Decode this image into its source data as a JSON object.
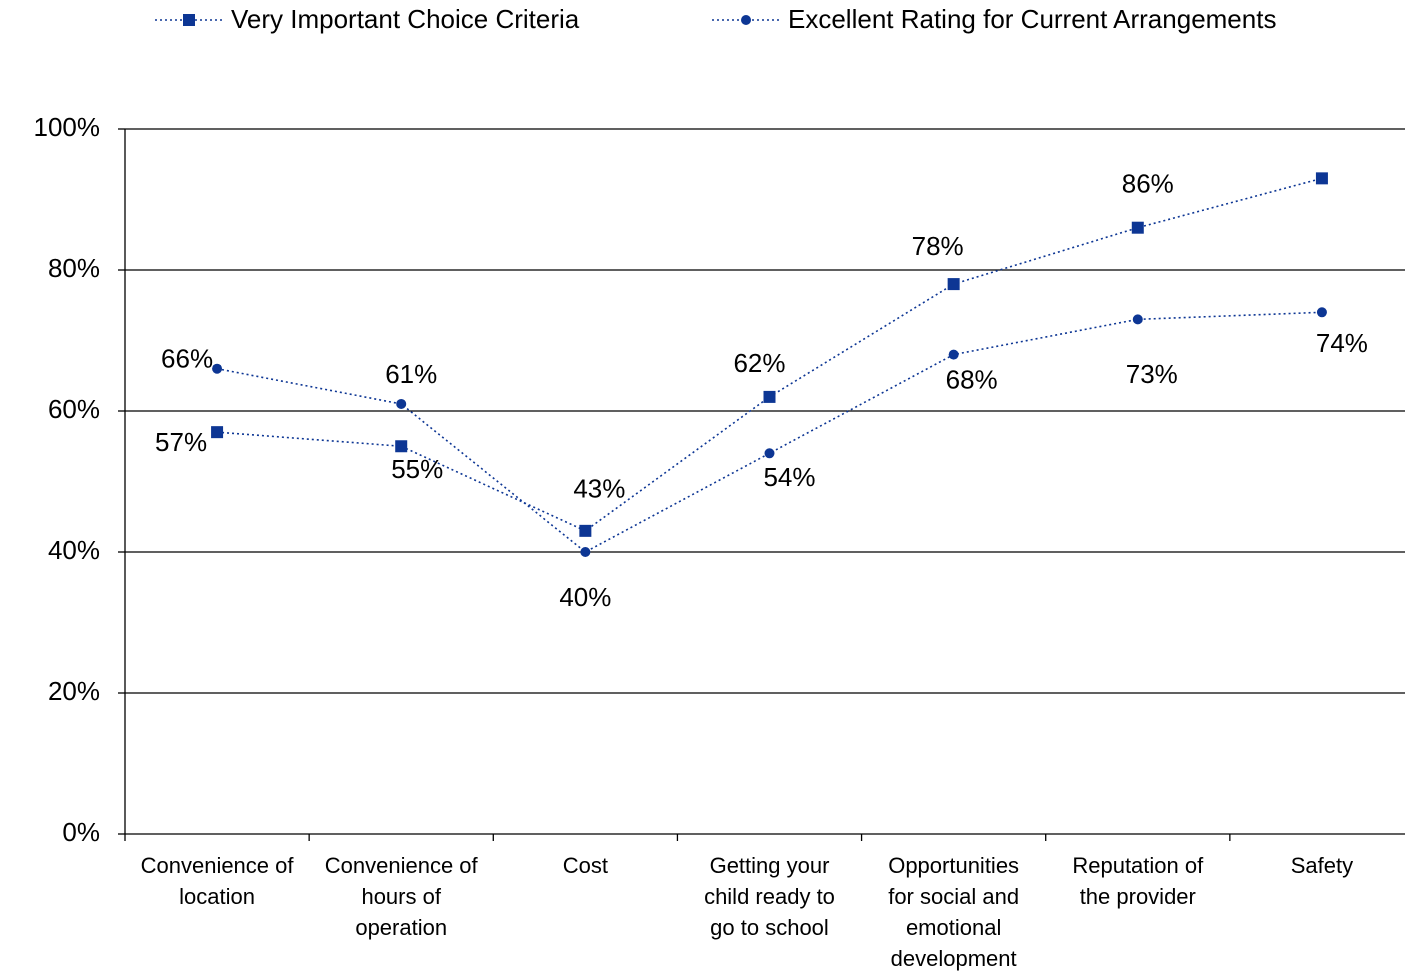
{
  "chart_data": {
    "type": "line",
    "categories": [
      "Convenience of location",
      "Convenience of hours of operation",
      "Cost",
      "Getting your child ready to go to school",
      "Opportunities for social and emotional development",
      "Reputation of the provider",
      "Safety"
    ],
    "series": [
      {
        "name": "Very Important Choice Criteria",
        "color": "#0d3694",
        "marker": "square",
        "values": [
          57,
          55,
          43,
          62,
          78,
          86,
          93
        ],
        "value_labels": [
          "57%",
          "55%",
          "43%",
          "62%",
          "78%",
          "86%",
          null
        ]
      },
      {
        "name": "Excellent Rating for Current Arrangements",
        "color": "#0d3694",
        "marker": "circle",
        "values": [
          66,
          61,
          40,
          54,
          68,
          73,
          74
        ],
        "value_labels": [
          "66%",
          "61%",
          "40%",
          "54%",
          "68%",
          "73%",
          "74%"
        ]
      }
    ],
    "ylim": [
      0,
      100
    ],
    "yticks": [
      {
        "value": 0,
        "label": "0%"
      },
      {
        "value": 20,
        "label": "20%"
      },
      {
        "value": 40,
        "label": "40%"
      },
      {
        "value": 60,
        "label": "60%"
      },
      {
        "value": 80,
        "label": "80%"
      },
      {
        "value": 100,
        "label": "100%"
      }
    ],
    "grid": true,
    "legend": "top"
  }
}
